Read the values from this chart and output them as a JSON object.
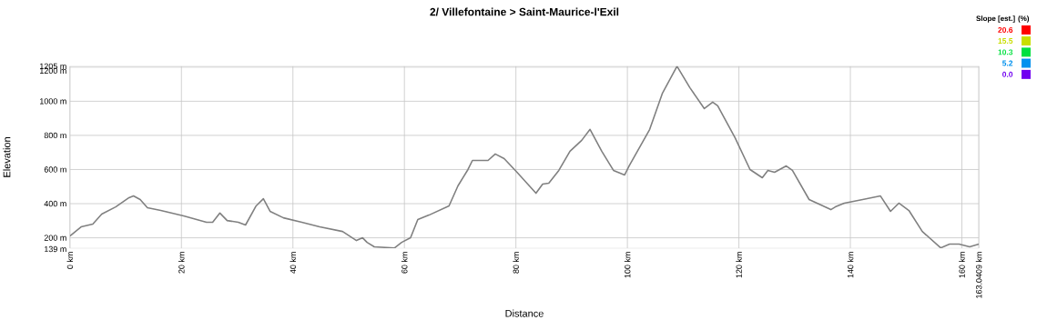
{
  "chart_data": {
    "type": "line",
    "title": "2/ Villefontaine > Saint-Maurice-l'Exil",
    "xlabel": "Distance",
    "ylabel": "Elevation",
    "x": [
      0,
      0.8,
      2,
      4.1,
      5.7,
      8.2,
      10.6,
      11.4,
      12.6,
      13.9,
      16.3,
      20.4,
      24.5,
      25.6,
      26.9,
      28.2,
      30.2,
      31.5,
      33.4,
      34.7,
      35.9,
      38.3,
      41.6,
      44.8,
      48.9,
      51.4,
      52.5,
      53.3,
      54.6,
      58.2,
      59.5,
      61.1,
      62.4,
      64.4,
      68,
      69.6,
      71.4,
      72.2,
      75,
      76.3,
      77.9,
      80.2,
      83.6,
      84.8,
      85.9,
      87.7,
      89.7,
      91.8,
      93.3,
      95.4,
      97.5,
      99.5,
      100.3,
      104,
      106.3,
      108.9,
      111.2,
      113.8,
      115.3,
      116.2,
      119.3,
      122,
      124.2,
      125.2,
      126.4,
      128.5,
      129.6,
      132.6,
      136.5,
      137.3,
      138.9,
      142.2,
      145.4,
      147.2,
      148.7,
      150.5,
      152.9,
      156.2,
      157.8,
      159.5,
      161.4,
      163.0409
    ],
    "series": [
      {
        "color": "#808080",
        "values": [
          210,
          232,
          264,
          280,
          339,
          381,
          435,
          445,
          424,
          376,
          360,
          328,
          291,
          291,
          345,
          301,
          291,
          275,
          387,
          429,
          355,
          317,
          291,
          264,
          237,
          184,
          200,
          173,
          147,
          140,
          173,
          200,
          307,
          333,
          387,
          504,
          600,
          653,
          653,
          691,
          664,
          584,
          461,
          515,
          520,
          595,
          707,
          771,
          835,
          707,
          595,
          568,
          621,
          835,
          1048,
          1205,
          1080,
          957,
          995,
          973,
          787,
          600,
          552,
          595,
          584,
          621,
          595,
          424,
          365,
          381,
          403,
          424,
          445,
          355,
          403,
          360,
          237,
          141,
          163,
          163,
          147,
          163
        ]
      }
    ],
    "xlim": [
      0,
      163.0409
    ],
    "ylim": [
      139,
      1205
    ],
    "xticks": [
      {
        "value": 0,
        "label": "0 km"
      },
      {
        "value": 20,
        "label": "20 km"
      },
      {
        "value": 40,
        "label": "40 km"
      },
      {
        "value": 60,
        "label": "60 km"
      },
      {
        "value": 80,
        "label": "80 km"
      },
      {
        "value": 100,
        "label": "100 km"
      },
      {
        "value": 120,
        "label": "120 km"
      },
      {
        "value": 140,
        "label": "140 km"
      },
      {
        "value": 160,
        "label": "160 km"
      },
      {
        "value": 163.0409,
        "label": "163.0409 km"
      }
    ],
    "yticks": [
      {
        "value": 139,
        "label": "139 m"
      },
      {
        "value": 200,
        "label": "200 m"
      },
      {
        "value": 400,
        "label": "400 m"
      },
      {
        "value": 600,
        "label": "600 m"
      },
      {
        "value": 800,
        "label": "800 m"
      },
      {
        "value": 1000,
        "label": "1000 m"
      },
      {
        "value": 1200,
        "label": "1200 m"
      },
      {
        "value": 1205,
        "label": "1205 m"
      }
    ],
    "grid": true,
    "marker": "none",
    "line_style": "solid",
    "clabel": "Slope [est.] (%)",
    "clim": [
      0,
      20.6
    ],
    "cticks": [
      {
        "value": 20.6,
        "label": "20.6"
      },
      {
        "value": 15.5,
        "label": "15.5"
      },
      {
        "value": 10.3,
        "label": "10.3"
      },
      {
        "value": 5.2,
        "label": "5.2"
      },
      {
        "value": 0,
        "label": "0.0"
      }
    ]
  }
}
